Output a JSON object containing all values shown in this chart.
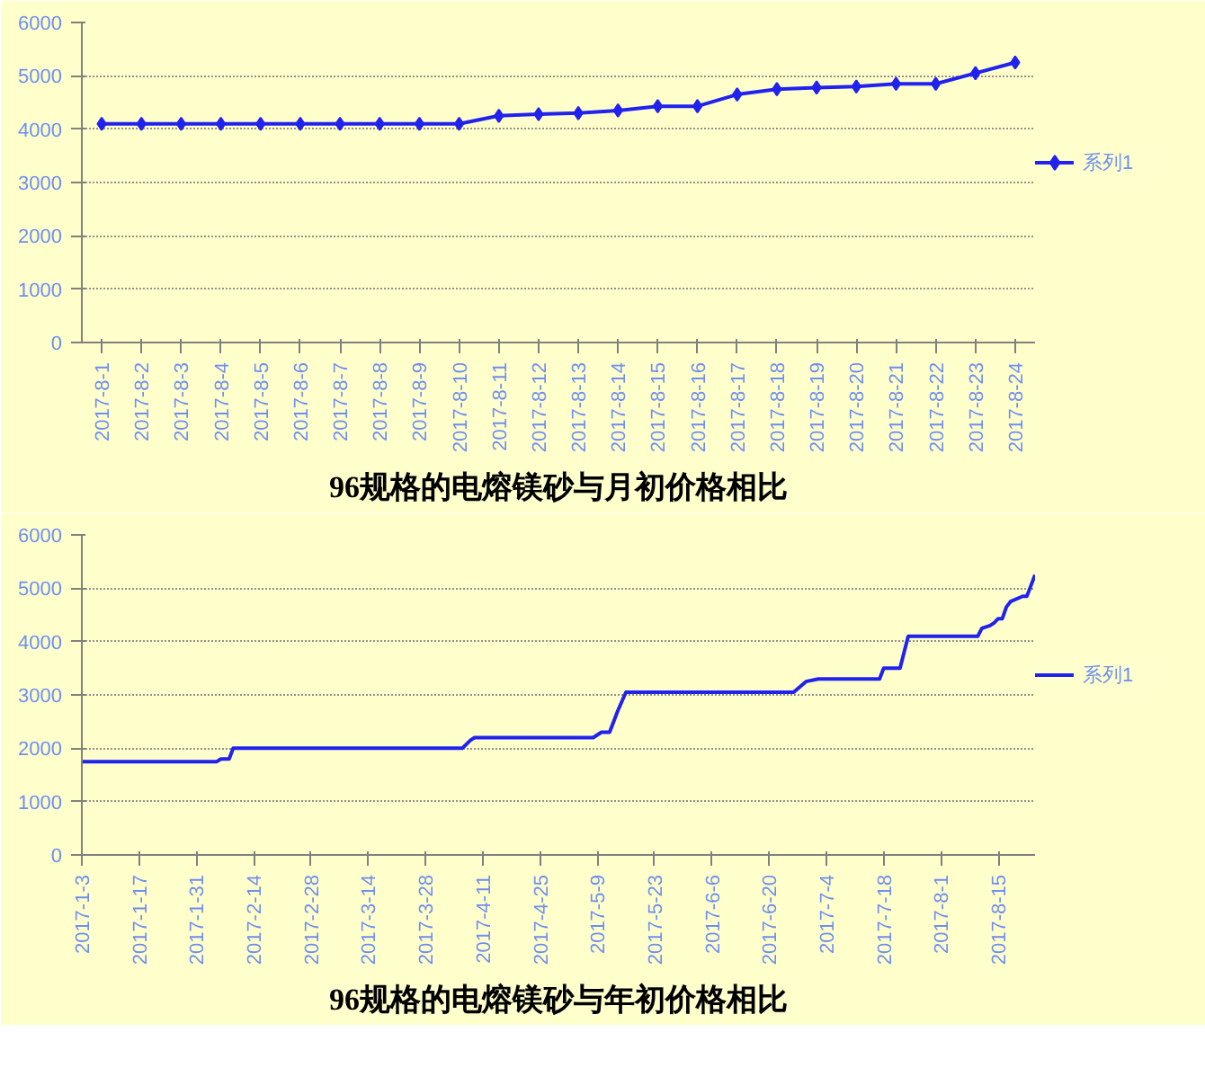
{
  "chart_data": [
    {
      "type": "line",
      "title": "96规格的电熔镁砂与月初价格相比",
      "categories": [
        "2017-8-1",
        "2017-8-2",
        "2017-8-3",
        "2017-8-4",
        "2017-8-5",
        "2017-8-6",
        "2017-8-7",
        "2017-8-8",
        "2017-8-9",
        "2017-8-10",
        "2017-8-11",
        "2017-8-12",
        "2017-8-13",
        "2017-8-14",
        "2017-8-15",
        "2017-8-16",
        "2017-8-17",
        "2017-8-18",
        "2017-8-19",
        "2017-8-20",
        "2017-8-21",
        "2017-8-22",
        "2017-8-23",
        "2017-8-24"
      ],
      "series": [
        {
          "name": "系列1",
          "color": "#2222ee",
          "values": [
            4100,
            4100,
            4100,
            4100,
            4100,
            4100,
            4100,
            4100,
            4100,
            4100,
            4250,
            4280,
            4300,
            4350,
            4430,
            4430,
            4650,
            4750,
            4780,
            4800,
            4850,
            4850,
            5050,
            5250
          ]
        }
      ],
      "marker": "diamond",
      "ylim": [
        0,
        6000
      ],
      "yticks": [
        0,
        1000,
        2000,
        3000,
        4000,
        5000,
        6000
      ],
      "grid": "y",
      "legend": "right"
    },
    {
      "type": "line",
      "title": "96规格的电熔镁砂与年初价格相比",
      "x": [
        "2017-01-03",
        "2017-02-05",
        "2017-02-06",
        "2017-02-08",
        "2017-02-09",
        "2017-04-06",
        "2017-04-08",
        "2017-04-09",
        "2017-05-08",
        "2017-05-10",
        "2017-05-12",
        "2017-05-13",
        "2017-05-14",
        "2017-05-16",
        "2017-06-26",
        "2017-06-29",
        "2017-07-02",
        "2017-07-17",
        "2017-07-18",
        "2017-07-22",
        "2017-07-24",
        "2017-08-10",
        "2017-08-11",
        "2017-08-13",
        "2017-08-14",
        "2017-08-15",
        "2017-08-16",
        "2017-08-17",
        "2017-08-18",
        "2017-08-21",
        "2017-08-22",
        "2017-08-23",
        "2017-08-24"
      ],
      "series": [
        {
          "name": "系列1",
          "color": "#2222ee",
          "values": [
            1750,
            1750,
            1800,
            1800,
            2000,
            2000,
            2150,
            2200,
            2200,
            2300,
            2300,
            2500,
            2700,
            3050,
            3050,
            3250,
            3300,
            3300,
            3500,
            3500,
            4100,
            4100,
            4250,
            4300,
            4350,
            4430,
            4430,
            4650,
            4750,
            4850,
            4850,
            5050,
            5250
          ]
        }
      ],
      "xlim": [
        "2017-01-03",
        "2017-08-24"
      ],
      "xticks": [
        {
          "value": "2017-01-03",
          "label": "2017-1-3"
        },
        {
          "value": "2017-01-17",
          "label": "2017-1-17"
        },
        {
          "value": "2017-01-31",
          "label": "2017-1-31"
        },
        {
          "value": "2017-02-14",
          "label": "2017-2-14"
        },
        {
          "value": "2017-02-28",
          "label": "2017-2-28"
        },
        {
          "value": "2017-03-14",
          "label": "2017-3-14"
        },
        {
          "value": "2017-03-28",
          "label": "2017-3-28"
        },
        {
          "value": "2017-04-11",
          "label": "2017-4-11"
        },
        {
          "value": "2017-04-25",
          "label": "2017-4-25"
        },
        {
          "value": "2017-05-09",
          "label": "2017-5-9"
        },
        {
          "value": "2017-05-23",
          "label": "2017-5-23"
        },
        {
          "value": "2017-06-06",
          "label": "2017-6-6"
        },
        {
          "value": "2017-06-20",
          "label": "2017-6-20"
        },
        {
          "value": "2017-07-04",
          "label": "2017-7-4"
        },
        {
          "value": "2017-07-18",
          "label": "2017-7-18"
        },
        {
          "value": "2017-08-01",
          "label": "2017-8-1"
        },
        {
          "value": "2017-08-15",
          "label": "2017-8-15"
        }
      ],
      "ylim": [
        0,
        6000
      ],
      "yticks": [
        0,
        1000,
        2000,
        3000,
        4000,
        5000,
        6000
      ],
      "grid": "y",
      "legend": "right"
    }
  ]
}
